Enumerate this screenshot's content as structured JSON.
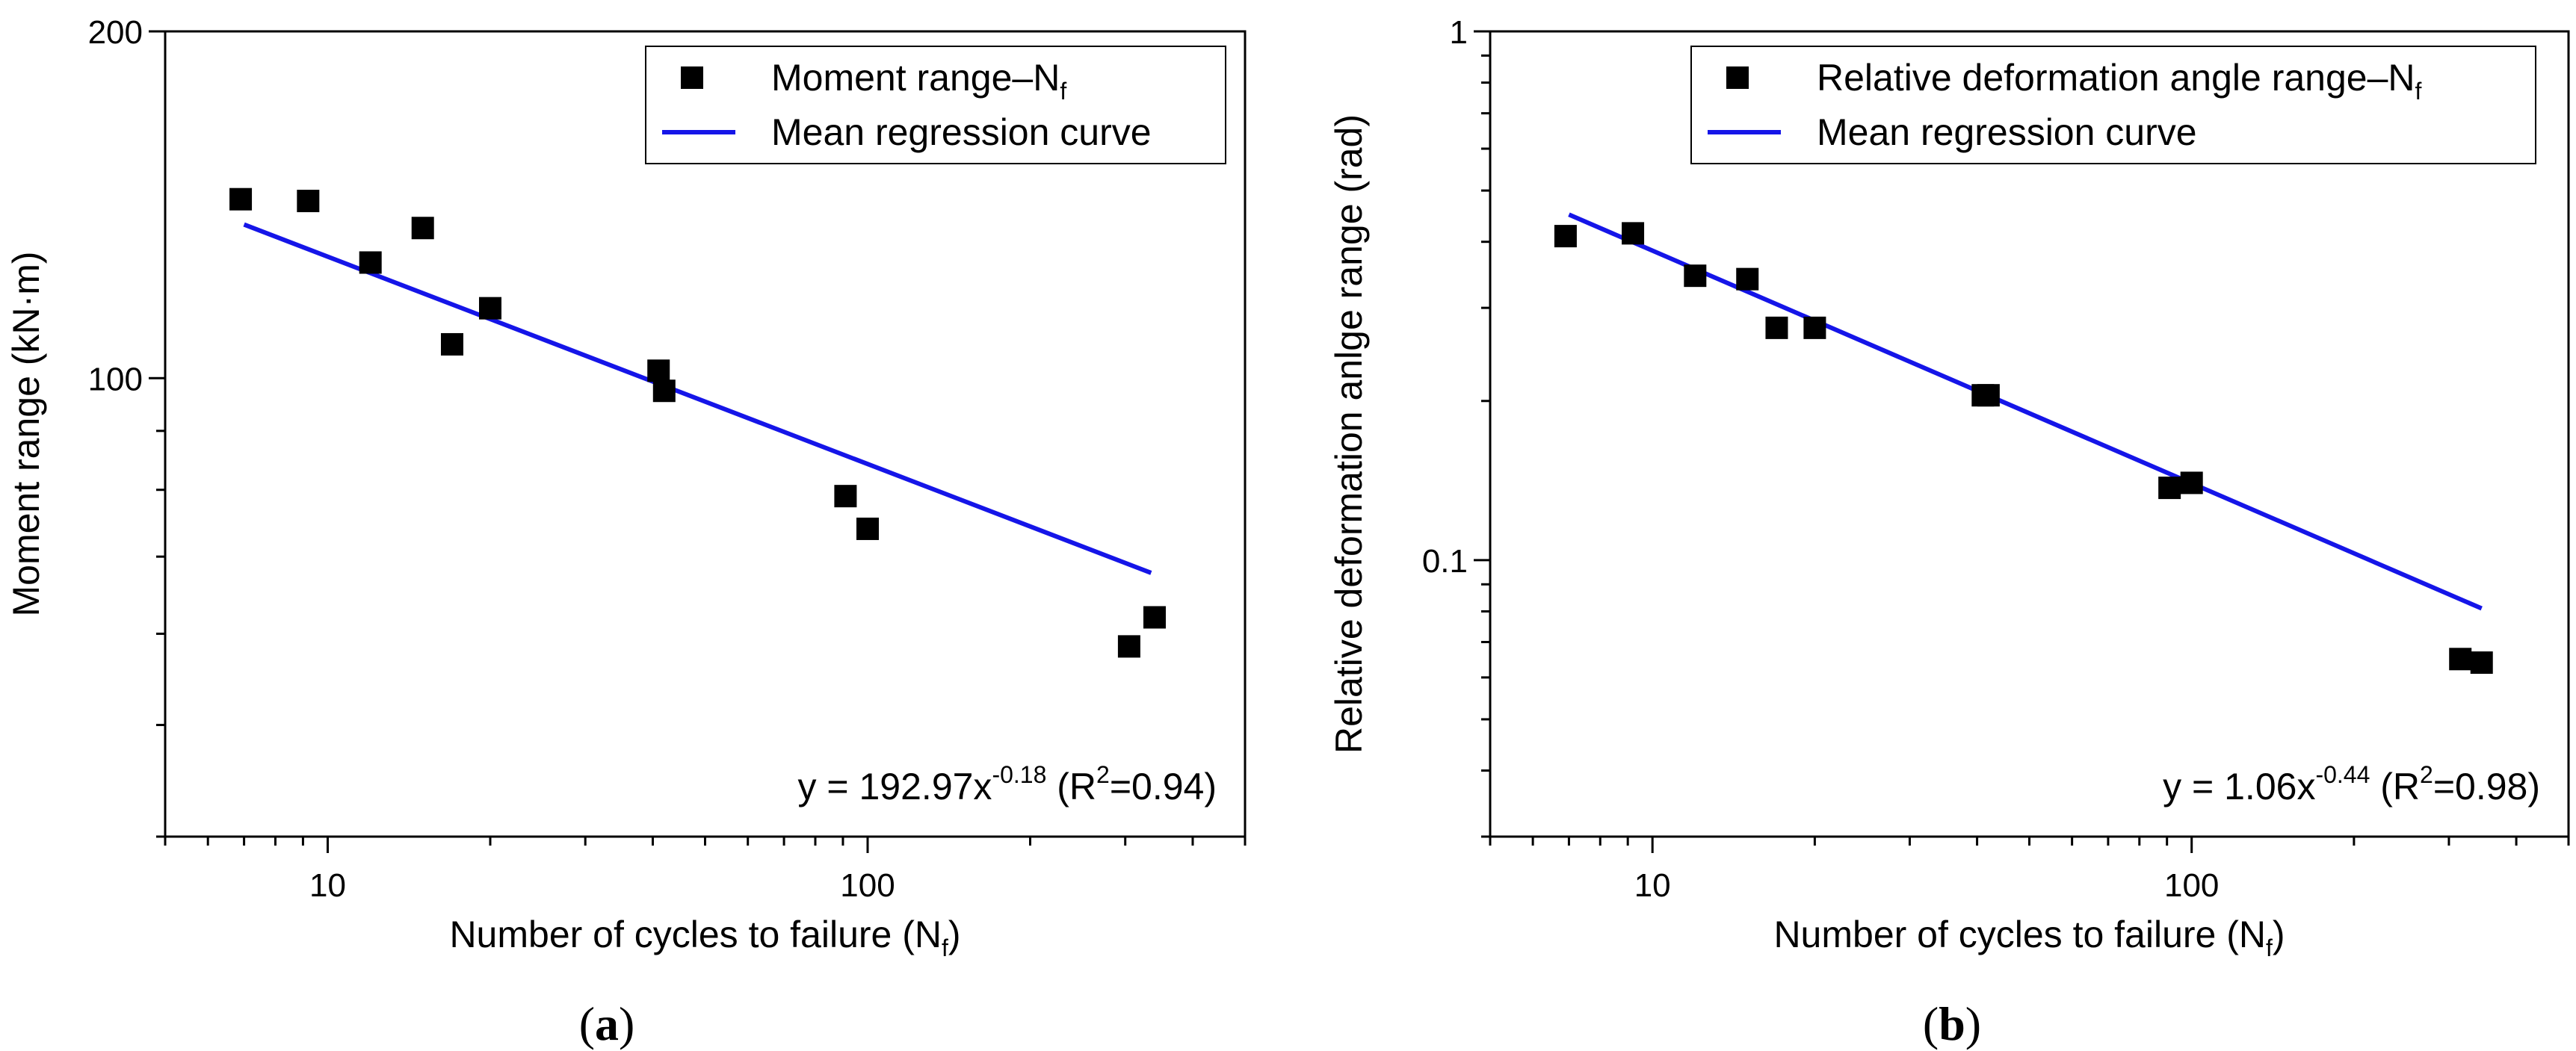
{
  "chart_data": [
    {
      "type": "scatter",
      "panel_label": "a",
      "xscale": "log",
      "yscale": "log",
      "xlim": [
        5,
        500
      ],
      "ylim": [
        40,
        200
      ],
      "xticks": [
        10,
        100
      ],
      "xtick_labels": [
        "10",
        "100"
      ],
      "yticks": [
        100,
        200
      ],
      "ytick_labels": [
        "100",
        "200"
      ],
      "xlabel_main": "Number of cycles to failure (N",
      "xlabel_sub": "f",
      "xlabel_tail": ")",
      "ylabel": "Moment range (kN·m)",
      "legend_position": "top-right",
      "series": [
        {
          "name": "Moment range–N",
          "name_sub": "f",
          "kind": "markers",
          "color": "#000000",
          "points": [
            {
              "x": 6.9,
              "y": 143
            },
            {
              "x": 9.2,
              "y": 142.5
            },
            {
              "x": 12,
              "y": 126
            },
            {
              "x": 15,
              "y": 135
            },
            {
              "x": 17,
              "y": 107
            },
            {
              "x": 20,
              "y": 115
            },
            {
              "x": 41,
              "y": 101.5
            },
            {
              "x": 42,
              "y": 97.5
            },
            {
              "x": 91,
              "y": 79
            },
            {
              "x": 100,
              "y": 74
            },
            {
              "x": 305,
              "y": 58.5
            },
            {
              "x": 340,
              "y": 62
            }
          ]
        },
        {
          "name": "Mean regression curve",
          "kind": "line",
          "color": "#1515e8",
          "coef": 192.97,
          "exponent": -0.18,
          "x_range": [
            7,
            335
          ]
        }
      ],
      "annotation": {
        "prefix": "y = 192.97x",
        "exp": "-0.18",
        "mid": " (R",
        "r2_sup": "2",
        "suffix": "=0.94)"
      }
    },
    {
      "type": "scatter",
      "panel_label": "b",
      "xscale": "log",
      "yscale": "log",
      "xlim": [
        5,
        500
      ],
      "ylim": [
        0.03,
        1
      ],
      "xticks": [
        10,
        100
      ],
      "xtick_labels": [
        "10",
        "100"
      ],
      "yticks": [
        0.1,
        1
      ],
      "ytick_labels": [
        "0.1",
        "1"
      ],
      "xlabel_main": "Number of cycles to failure (N",
      "xlabel_sub": "f",
      "xlabel_tail": ")",
      "ylabel": "Relative deformation anlge range (rad)",
      "legend_position": "top-right",
      "series": [
        {
          "name": "Relative deformation angle range–N",
          "name_sub": "f",
          "kind": "markers",
          "color": "#000000",
          "points": [
            {
              "x": 6.9,
              "y": 0.41
            },
            {
              "x": 9.2,
              "y": 0.415
            },
            {
              "x": 12,
              "y": 0.345
            },
            {
              "x": 15,
              "y": 0.34
            },
            {
              "x": 17,
              "y": 0.275
            },
            {
              "x": 20,
              "y": 0.275
            },
            {
              "x": 41,
              "y": 0.205
            },
            {
              "x": 42,
              "y": 0.205
            },
            {
              "x": 91,
              "y": 0.137
            },
            {
              "x": 100,
              "y": 0.14
            },
            {
              "x": 315,
              "y": 0.065
            },
            {
              "x": 345,
              "y": 0.064
            }
          ]
        },
        {
          "name": "Mean regression curve",
          "kind": "line",
          "color": "#1515e8",
          "coef": 1.06,
          "exponent": -0.44,
          "x_range": [
            7,
            345
          ]
        }
      ],
      "annotation": {
        "prefix": "y = 1.06x",
        "exp": "-0.44",
        "mid": " (R",
        "r2_sup": "2",
        "suffix": "=0.98)"
      }
    }
  ]
}
